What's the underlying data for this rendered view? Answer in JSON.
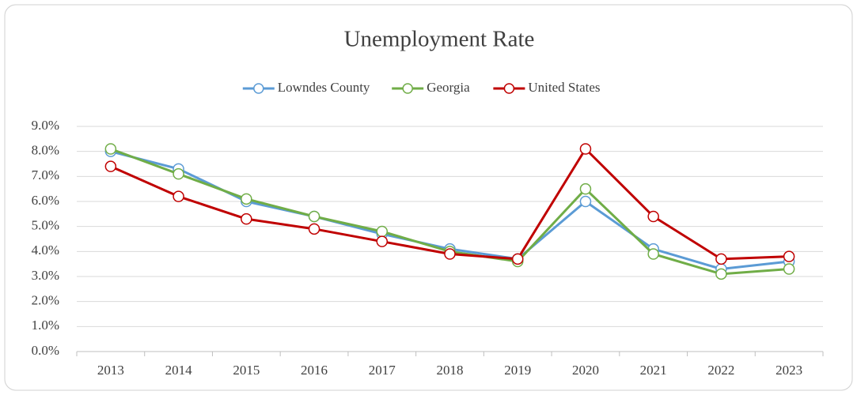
{
  "chart_data": {
    "type": "line",
    "title": "Unemployment Rate",
    "categories": [
      "2013",
      "2014",
      "2015",
      "2016",
      "2017",
      "2018",
      "2019",
      "2020",
      "2021",
      "2022",
      "2023"
    ],
    "series": [
      {
        "name": "Lowndes County",
        "color": "#5b9bd5",
        "values": [
          8.0,
          7.3,
          6.0,
          5.4,
          4.7,
          4.1,
          3.7,
          6.0,
          4.1,
          3.3,
          3.6
        ]
      },
      {
        "name": "Georgia",
        "color": "#70ad47",
        "values": [
          8.1,
          7.1,
          6.1,
          5.4,
          4.8,
          4.0,
          3.6,
          6.5,
          3.9,
          3.1,
          3.3
        ]
      },
      {
        "name": "United States",
        "color": "#c00000",
        "values": [
          7.4,
          6.2,
          5.3,
          4.9,
          4.4,
          3.9,
          3.7,
          8.1,
          5.4,
          3.7,
          3.8
        ]
      }
    ],
    "ylim": [
      0,
      9
    ],
    "yticks": [
      {
        "value": 0,
        "label": "0.0%"
      },
      {
        "value": 1,
        "label": "1.0%"
      },
      {
        "value": 2,
        "label": "2.0%"
      },
      {
        "value": 3,
        "label": "3.0%"
      },
      {
        "value": 4,
        "label": "4.0%"
      },
      {
        "value": 5,
        "label": "5.0%"
      },
      {
        "value": 6,
        "label": "6.0%"
      },
      {
        "value": 7,
        "label": "7.0%"
      },
      {
        "value": 8,
        "label": "8.0%"
      },
      {
        "value": 9,
        "label": "9.0%"
      }
    ],
    "grid": true,
    "legend": "top"
  }
}
